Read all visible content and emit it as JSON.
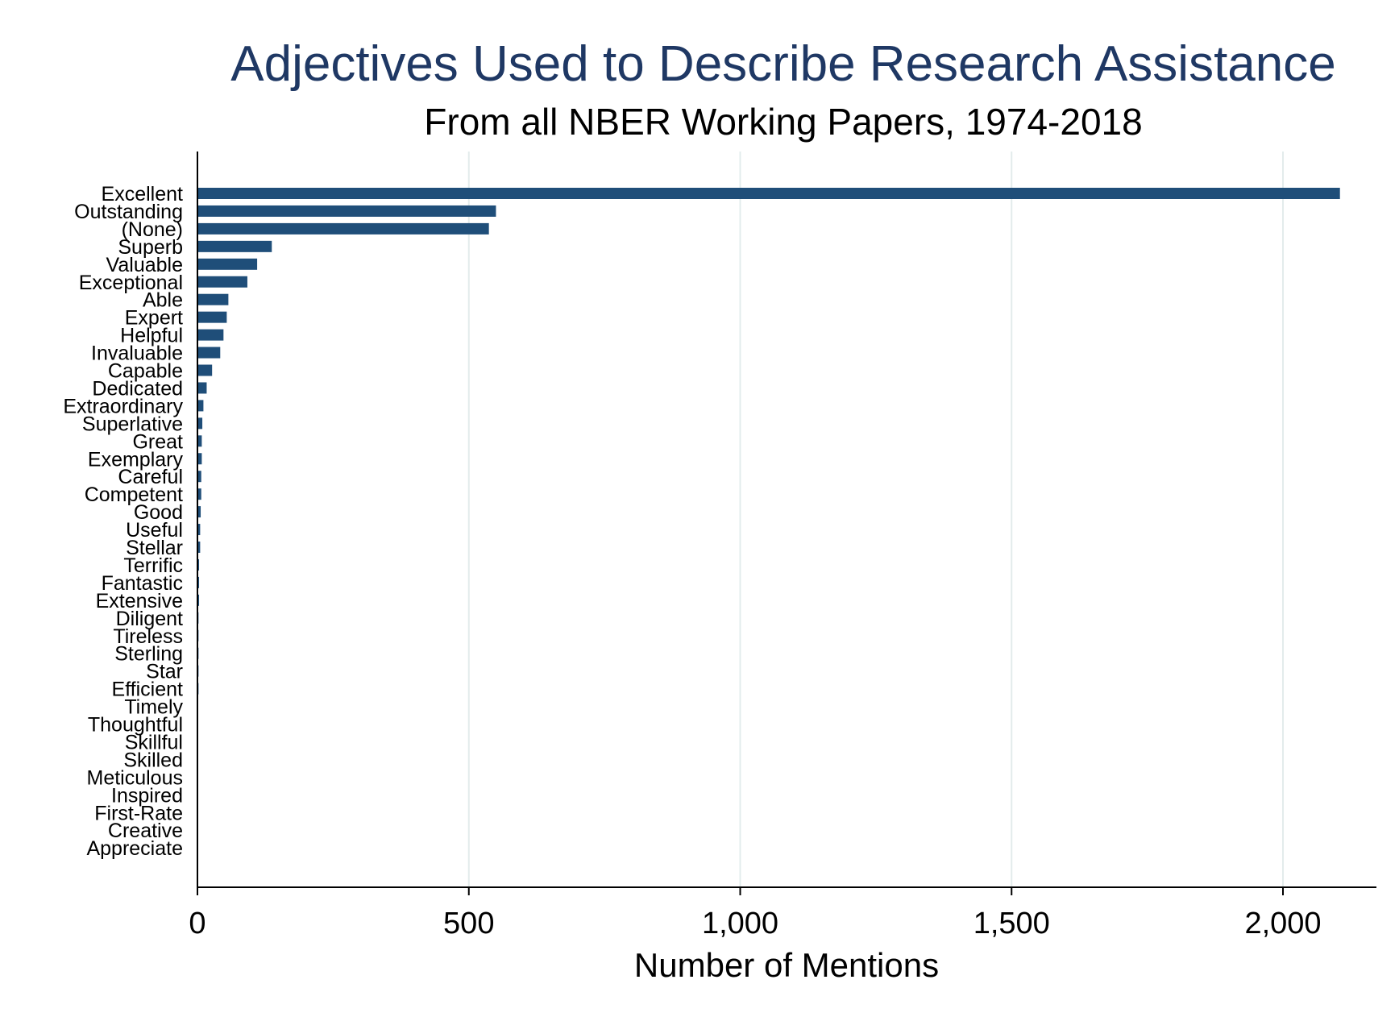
{
  "chart_data": {
    "type": "bar",
    "orientation": "horizontal",
    "title": "Adjectives Used to Describe Research Assistance",
    "subtitle": "From all NBER Working Papers, 1974-2018",
    "xlabel": "Number of Mentions",
    "ylabel": "",
    "xlim": [
      0,
      2170
    ],
    "xticks": [
      0,
      500,
      1000,
      1500,
      2000
    ],
    "xtick_labels": [
      "0",
      "500",
      "1,000",
      "1,500",
      "2,000"
    ],
    "grid": true,
    "bar_color": "#1f4e79",
    "title_color": "#1f3864",
    "grid_color": "#e3ecec",
    "categories": [
      "Excellent",
      "Outstanding",
      "(None)",
      "Superb",
      "Valuable",
      "Exceptional",
      "Able",
      "Expert",
      "Helpful",
      "Invaluable",
      "Capable",
      "Dedicated",
      "Extraordinary",
      "Superlative",
      "Great",
      "Exemplary",
      "Careful",
      "Competent",
      "Good",
      "Useful",
      "Stellar",
      "Terrific",
      "Fantastic",
      "Extensive",
      "Diligent",
      "Tireless",
      "Sterling",
      "Star",
      "Efficient",
      "Timely",
      "Thoughtful",
      "Skillful",
      "Skilled",
      "Meticulous",
      "Inspired",
      "First-Rate",
      "Creative",
      "Appreciate"
    ],
    "values": [
      2105,
      550,
      537,
      137,
      110,
      92,
      57,
      54,
      48,
      42,
      27,
      17,
      11,
      9,
      8,
      8,
      7,
      7,
      6,
      5,
      5,
      3,
      3,
      3,
      2,
      2,
      2,
      2,
      2,
      1,
      1,
      1,
      1,
      1,
      1,
      1,
      1,
      1
    ]
  }
}
